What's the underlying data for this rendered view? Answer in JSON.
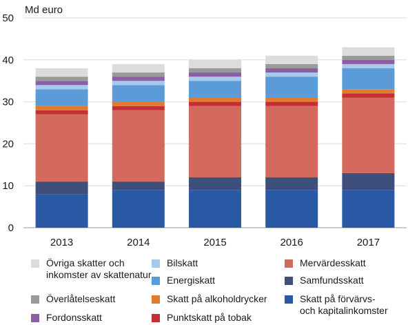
{
  "chart_data": {
    "type": "bar",
    "stacked": true,
    "ylabel": "Md euro",
    "ylim": [
      0,
      50
    ],
    "yticks": [
      0,
      10,
      20,
      30,
      40,
      50
    ],
    "grid": true,
    "legend_position": "bottom",
    "categories": [
      "2013",
      "2014",
      "2015",
      "2016",
      "2017"
    ],
    "series": [
      {
        "name": "Skatt på förvärvs- och kapitalinkomster",
        "color": "#2a5aa6",
        "values": [
          8,
          9,
          9,
          9,
          9
        ]
      },
      {
        "name": "Samfundsskatt",
        "color": "#3d4f7a",
        "values": [
          3,
          2,
          3,
          3,
          4
        ]
      },
      {
        "name": "Mervärdesskatt",
        "color": "#d46a5e",
        "values": [
          16,
          17,
          17,
          17,
          18
        ]
      },
      {
        "name": "Punktskatt på tobak",
        "color": "#c42f35",
        "values": [
          1,
          1,
          1,
          1,
          1
        ]
      },
      {
        "name": "Skatt på alkoholdrycker",
        "color": "#e07b2f",
        "values": [
          1,
          1,
          1,
          1,
          1
        ]
      },
      {
        "name": "Energiskatt",
        "color": "#5b9bd8",
        "values": [
          4,
          4,
          4,
          5,
          5
        ]
      },
      {
        "name": "Bilskatt",
        "color": "#a6c8ea",
        "values": [
          1,
          1,
          1,
          1,
          1
        ]
      },
      {
        "name": "Fordonsskatt",
        "color": "#8a5fa5",
        "values": [
          1,
          1,
          1,
          1,
          1
        ]
      },
      {
        "name": "Överlåtelseskatt",
        "color": "#9a9a9a",
        "values": [
          1,
          1,
          1,
          1,
          1
        ]
      },
      {
        "name": "Övriga skatter och inkomster av skattenatur",
        "color": "#dcdcdc",
        "values": [
          2,
          2,
          2,
          2,
          2
        ]
      }
    ],
    "legend": [
      {
        "label": "Övriga skatter och\ninkomster av skattenatur",
        "color": "#dcdcdc"
      },
      {
        "label": "Bilskatt",
        "color": "#a6c8ea"
      },
      {
        "label": "Mervärdesskatt",
        "color": "#d46a5e"
      },
      {
        "label": "Energiskatt",
        "color": "#5b9bd8"
      },
      {
        "label": "Samfundsskatt",
        "color": "#3d4f7a"
      },
      {
        "label": "Överlåtelseskatt",
        "color": "#9a9a9a"
      },
      {
        "label": "Skatt på alkoholdrycker",
        "color": "#e07b2f"
      },
      {
        "label": "Skatt på förvärvs-\noch kapitalinkomster",
        "color": "#2a5aa6"
      },
      {
        "label": "Fordonsskatt",
        "color": "#8a5fa5"
      },
      {
        "label": "Punktskatt på tobak",
        "color": "#c42f35"
      }
    ]
  }
}
